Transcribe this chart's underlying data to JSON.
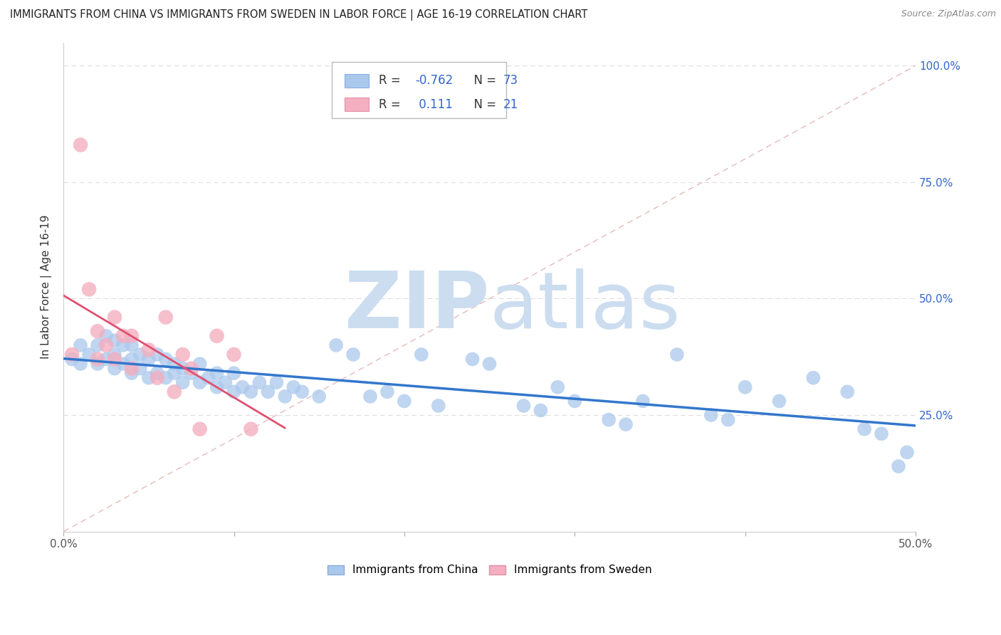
{
  "title": "IMMIGRANTS FROM CHINA VS IMMIGRANTS FROM SWEDEN IN LABOR FORCE | AGE 16-19 CORRELATION CHART",
  "source": "Source: ZipAtlas.com",
  "ylabel": "In Labor Force | Age 16-19",
  "xlim": [
    0.0,
    0.5
  ],
  "ylim": [
    0.0,
    1.05
  ],
  "china_color": "#aac8ec",
  "china_edge": "#aac8ec",
  "sweden_color": "#f4afc0",
  "sweden_edge": "#f4afc0",
  "china_line_color": "#3377cc",
  "sweden_line_color": "#e05070",
  "ref_line_color": "#ddaaaa",
  "grid_color": "#dddddd",
  "china_R": -0.762,
  "china_N": 73,
  "sweden_R": 0.111,
  "sweden_N": 21,
  "legend_text_color": "#3366cc",
  "legend_label_color": "#333333",
  "china_scatter_x": [
    0.005,
    0.01,
    0.01,
    0.015,
    0.02,
    0.02,
    0.025,
    0.025,
    0.03,
    0.03,
    0.03,
    0.035,
    0.035,
    0.04,
    0.04,
    0.04,
    0.045,
    0.045,
    0.05,
    0.05,
    0.055,
    0.055,
    0.06,
    0.06,
    0.065,
    0.065,
    0.07,
    0.07,
    0.075,
    0.08,
    0.08,
    0.085,
    0.09,
    0.09,
    0.095,
    0.1,
    0.1,
    0.105,
    0.11,
    0.115,
    0.12,
    0.125,
    0.13,
    0.135,
    0.14,
    0.15,
    0.16,
    0.17,
    0.18,
    0.19,
    0.2,
    0.22,
    0.24,
    0.25,
    0.27,
    0.28,
    0.3,
    0.32,
    0.34,
    0.36,
    0.38,
    0.39,
    0.4,
    0.42,
    0.44,
    0.46,
    0.47,
    0.48,
    0.49,
    0.495,
    0.33,
    0.29,
    0.21
  ],
  "china_scatter_y": [
    0.37,
    0.36,
    0.4,
    0.38,
    0.36,
    0.4,
    0.37,
    0.42,
    0.35,
    0.38,
    0.41,
    0.36,
    0.4,
    0.34,
    0.37,
    0.4,
    0.35,
    0.38,
    0.33,
    0.37,
    0.34,
    0.38,
    0.33,
    0.37,
    0.34,
    0.36,
    0.32,
    0.35,
    0.34,
    0.32,
    0.36,
    0.33,
    0.31,
    0.34,
    0.32,
    0.3,
    0.34,
    0.31,
    0.3,
    0.32,
    0.3,
    0.32,
    0.29,
    0.31,
    0.3,
    0.29,
    0.4,
    0.38,
    0.29,
    0.3,
    0.28,
    0.27,
    0.37,
    0.36,
    0.27,
    0.26,
    0.28,
    0.24,
    0.28,
    0.38,
    0.25,
    0.24,
    0.31,
    0.28,
    0.33,
    0.3,
    0.22,
    0.21,
    0.14,
    0.17,
    0.23,
    0.31,
    0.38
  ],
  "sweden_scatter_x": [
    0.005,
    0.01,
    0.015,
    0.02,
    0.02,
    0.025,
    0.03,
    0.03,
    0.035,
    0.04,
    0.04,
    0.05,
    0.055,
    0.06,
    0.065,
    0.07,
    0.075,
    0.08,
    0.09,
    0.1,
    0.11
  ],
  "sweden_scatter_y": [
    0.38,
    0.83,
    0.52,
    0.43,
    0.37,
    0.4,
    0.46,
    0.37,
    0.42,
    0.35,
    0.42,
    0.39,
    0.33,
    0.46,
    0.3,
    0.38,
    0.35,
    0.22,
    0.42,
    0.38,
    0.22
  ]
}
